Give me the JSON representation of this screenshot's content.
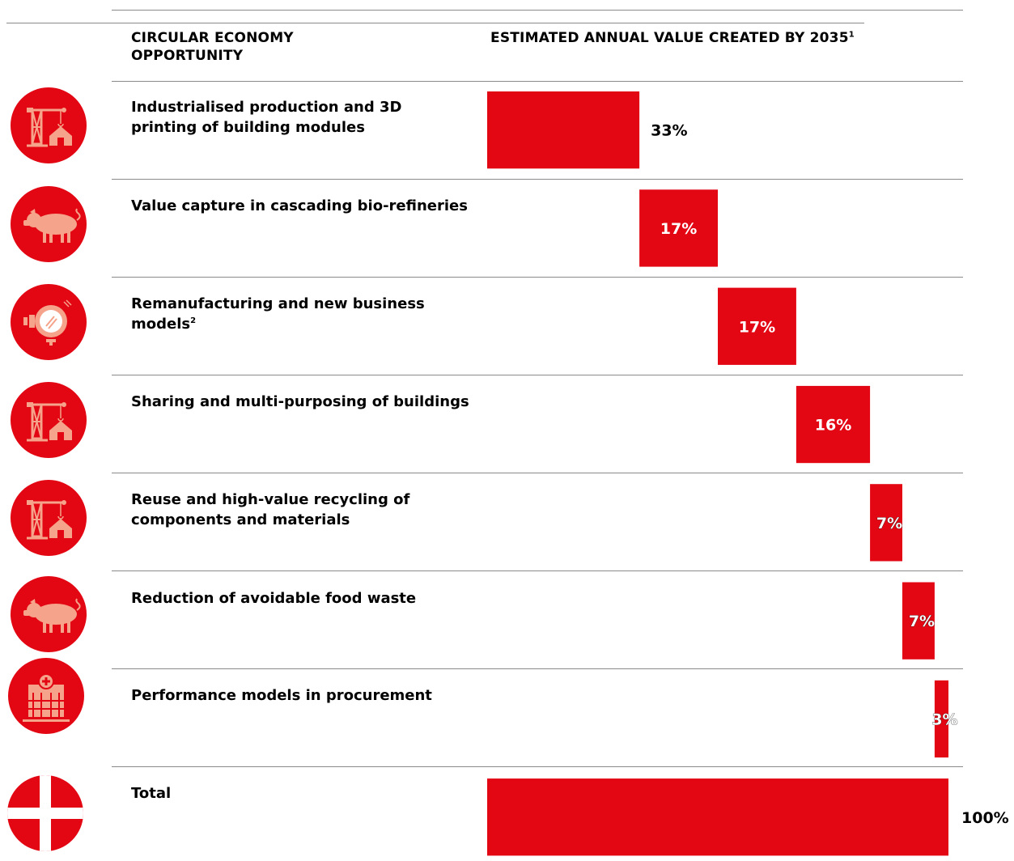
{
  "colors": {
    "accent": "#e30613",
    "icon": "#f5a38a",
    "rule": "#8a8a8a"
  },
  "header": {
    "col1": [
      "CIRCULAR ECONOMY",
      "OPPORTUNITY"
    ],
    "col2": "ESTIMATED ANNUAL VALUE CREATED BY 2035",
    "col2_sup": "1"
  },
  "rows": [
    {
      "label": "Industrialised production and 3D printing of building modules",
      "sup": "",
      "icon": "crane-house-icon"
    },
    {
      "label": "Value capture in cascading bio-refineries",
      "sup": "",
      "icon": "pig-icon"
    },
    {
      "label": "Remanufacturing and new business models",
      "sup": "2",
      "icon": "washing-machine-icon"
    },
    {
      "label": "Sharing and multi-purposing of buildings",
      "sup": "",
      "icon": "crane-house-icon"
    },
    {
      "label": "Reuse and high-value recycling of components and materials",
      "sup": "",
      "icon": "crane-house-icon"
    },
    {
      "label": "Reduction of avoidable food waste",
      "sup": "",
      "icon": "pig-icon"
    },
    {
      "label": "Performance models in procurement",
      "sup": "",
      "icon": "hospital-icon"
    },
    {
      "label": "Total",
      "sup": "",
      "icon": "danish-flag-icon"
    }
  ],
  "chart_data": {
    "type": "bar",
    "orientation": "horizontal-waterfall",
    "categories": [
      "Industrialised production and 3D printing of building modules",
      "Value capture in cascading bio-refineries",
      "Remanufacturing and new business models",
      "Sharing and multi-purposing of buildings",
      "Reuse and high-value recycling of components and materials",
      "Reduction of avoidable food waste",
      "Performance models in procurement",
      "Total"
    ],
    "values": [
      33,
      17,
      17,
      16,
      7,
      7,
      3,
      100
    ],
    "labels": [
      "33%",
      "17%",
      "17%",
      "16%",
      "7%",
      "7%",
      "3%",
      "100%"
    ],
    "total_index": 7,
    "unit": "%",
    "title": "",
    "xlabel": "",
    "ylabel": ""
  }
}
